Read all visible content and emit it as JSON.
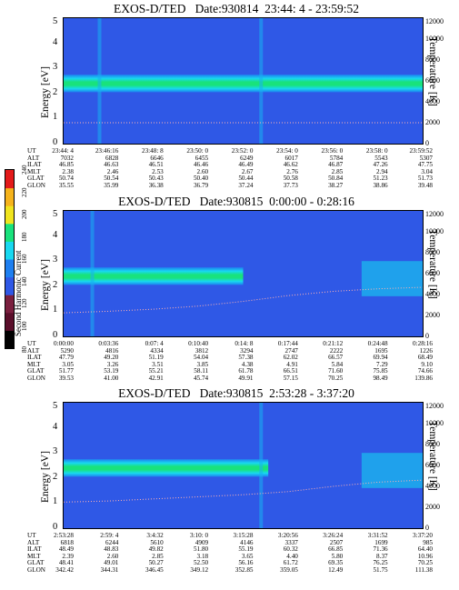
{
  "colorbar": {
    "label": "Second Harmonic Current",
    "ticks": [
      "80",
      "100",
      "120",
      "140",
      "160",
      "180",
      "200",
      "220",
      "240"
    ],
    "colors": [
      "#000000",
      "#5a0e2a",
      "#7a1f3e",
      "#2f58e6",
      "#1e7ff0",
      "#18d8f0",
      "#19e27c",
      "#f0e41e",
      "#f5b31c",
      "#e31a1a"
    ]
  },
  "chart_data": [
    {
      "type": "heatmap",
      "title": "EXOS-D/TED   Date:930814  23:44: 4 - 23:59:52",
      "ylabel": "Energy [eV]",
      "y2label": "Temperature [K]",
      "ylim": [
        0,
        5
      ],
      "y2lim": [
        0,
        12000
      ],
      "yticks": [
        "0",
        "1",
        "2",
        "3",
        "4",
        "5"
      ],
      "y2ticks": [
        "0",
        "2000",
        "4000",
        "6000",
        "8000",
        "10000",
        "12000"
      ],
      "band": {
        "center_eV": 2.4,
        "halfwidth_eV": 0.35,
        "start_fraction": 0.0,
        "end_fraction": 1.0
      },
      "temperature_trace": [
        2000,
        2000,
        2000,
        2000,
        2000,
        2000,
        2000,
        2000,
        2000
      ],
      "vertical_lines_fraction": [
        0.1,
        0.55
      ],
      "tail": false,
      "columns": [
        "23:44: 4",
        "23:46:16",
        "23:48: 8",
        "23:50: 0",
        "23:52: 0",
        "23:54: 0",
        "23:56: 0",
        "23:58: 0",
        "23:59:52"
      ],
      "rows": [
        {
          "label": "UT",
          "values": [
            "23:44: 4",
            "23:46:16",
            "23:48: 8",
            "23:50: 0",
            "23:52: 0",
            "23:54: 0",
            "23:56: 0",
            "23:58: 0",
            "23:59:52"
          ]
        },
        {
          "label": "ALT",
          "values": [
            "7032",
            "6828",
            "6646",
            "6455",
            "6249",
            "6017",
            "5784",
            "5543",
            "5307"
          ]
        },
        {
          "label": "ILAT",
          "values": [
            "46.85",
            "46.63",
            "46.51",
            "46.46",
            "46.49",
            "46.62",
            "46.87",
            "47.26",
            "47.75"
          ]
        },
        {
          "label": "MLT",
          "values": [
            "2.38",
            "2.46",
            "2.53",
            "2.60",
            "2.67",
            "2.76",
            "2.85",
            "2.94",
            "3.04"
          ]
        },
        {
          "label": "GLAT",
          "values": [
            "50.74",
            "50.54",
            "50.43",
            "50.40",
            "50.44",
            "50.58",
            "50.84",
            "51.23",
            "51.73"
          ]
        },
        {
          "label": "GLON",
          "values": [
            "35.55",
            "35.99",
            "36.38",
            "36.79",
            "37.24",
            "37.73",
            "38.27",
            "38.86",
            "39.48"
          ]
        }
      ]
    },
    {
      "type": "heatmap",
      "title": "EXOS-D/TED   Date:930815  0:00:00 - 0:28:16",
      "ylabel": "Energy [eV]",
      "y2label": "Temperature [K]",
      "ylim": [
        0,
        5
      ],
      "y2lim": [
        0,
        12000
      ],
      "yticks": [
        "0",
        "1",
        "2",
        "3",
        "4",
        "5"
      ],
      "y2ticks": [
        "0",
        "2000",
        "4000",
        "6000",
        "8000",
        "10000",
        "12000"
      ],
      "band": {
        "center_eV": 2.4,
        "halfwidth_eV": 0.35,
        "start_fraction": 0.0,
        "end_fraction": 0.5
      },
      "temperature_trace": [
        2250,
        2400,
        2600,
        2900,
        3350,
        3900,
        4300,
        4550,
        4700
      ],
      "vertical_lines_fraction": [
        0.08
      ],
      "tail": true,
      "columns": [
        "0:00:00",
        "0:03:36",
        "0:07: 4",
        "0:10:40",
        "0:14: 8",
        "0:17:44",
        "0:21:12",
        "0:24:48",
        "0:28:16"
      ],
      "rows": [
        {
          "label": "UT",
          "values": [
            "0:00:00",
            "0:03:36",
            "0:07: 4",
            "0:10:40",
            "0:14: 8",
            "0:17:44",
            "0:21:12",
            "0:24:48",
            "0:28:16"
          ]
        },
        {
          "label": "ALT",
          "values": [
            "5290",
            "4816",
            "4334",
            "3812",
            "3294",
            "2747",
            "2222",
            "1695",
            "1226"
          ]
        },
        {
          "label": "ILAT",
          "values": [
            "47.79",
            "49.20",
            "51.19",
            "54.04",
            "57.38",
            "62.02",
            "66.57",
            "69.94",
            "68.49"
          ]
        },
        {
          "label": "MLT",
          "values": [
            "3.05",
            "3.26",
            "3.51",
            "3.85",
            "4.38",
            "4.91",
            "5.84",
            "7.29",
            "9.10"
          ]
        },
        {
          "label": "GLAT",
          "values": [
            "51.77",
            "53.19",
            "55.21",
            "58.11",
            "61.78",
            "66.51",
            "71.60",
            "75.85",
            "74.66"
          ]
        },
        {
          "label": "GLON",
          "values": [
            "39.53",
            "41.00",
            "42.91",
            "45.74",
            "49.91",
            "57.15",
            "70.25",
            "98.49",
            "139.86"
          ]
        }
      ]
    },
    {
      "type": "heatmap",
      "title": "EXOS-D/TED   Date:930815  2:53:28 - 3:37:20",
      "ylabel": "Energy [eV]",
      "y2label": "Temperature [K]",
      "ylim": [
        0,
        5
      ],
      "y2lim": [
        0,
        12000
      ],
      "yticks": [
        "0",
        "1",
        "2",
        "3",
        "4",
        "5"
      ],
      "y2ticks": [
        "0",
        "2000",
        "4000",
        "6000",
        "8000",
        "10000",
        "12000"
      ],
      "band": {
        "center_eV": 2.4,
        "halfwidth_eV": 0.35,
        "start_fraction": 0.0,
        "end_fraction": 0.57
      },
      "temperature_trace": [
        2500,
        2600,
        2800,
        3000,
        3200,
        3500,
        4000,
        4400,
        4600
      ],
      "vertical_lines_fraction": [
        0.55
      ],
      "tail": true,
      "columns": [
        "2:53:28",
        "2:59: 4",
        "3:4:32",
        "3:10: 0",
        "3:15:28",
        "3:20:56",
        "3:26:24",
        "3:31:52",
        "3:37:20"
      ],
      "rows": [
        {
          "label": "UT",
          "values": [
            "2:53:28",
            "2:59: 4",
            "3:4:32",
            "3:10: 0",
            "3:15:28",
            "3:20:56",
            "3:26:24",
            "3:31:52",
            "3:37:20"
          ]
        },
        {
          "label": "ALT",
          "values": [
            "6818",
            "6244",
            "5610",
            "4909",
            "4146",
            "3337",
            "2507",
            "1699",
            "985"
          ]
        },
        {
          "label": "ILAT",
          "values": [
            "48.49",
            "48.83",
            "49.82",
            "51.80",
            "55.19",
            "60.32",
            "66.85",
            "71.36",
            "64.40"
          ]
        },
        {
          "label": "MLT",
          "values": [
            "2.39",
            "2.60",
            "2.85",
            "3.18",
            "3.65",
            "4.40",
            "5.80",
            "8.37",
            "10.96"
          ]
        },
        {
          "label": "GLAT",
          "values": [
            "48.41",
            "49.01",
            "50.27",
            "52.50",
            "56.16",
            "61.72",
            "69.35",
            "76.25",
            "70.25"
          ]
        },
        {
          "label": "GLON",
          "values": [
            "342.42",
            "344.31",
            "346.45",
            "349.12",
            "352.85",
            "359.05",
            "12.49",
            "51.75",
            "111.38"
          ]
        }
      ]
    }
  ]
}
